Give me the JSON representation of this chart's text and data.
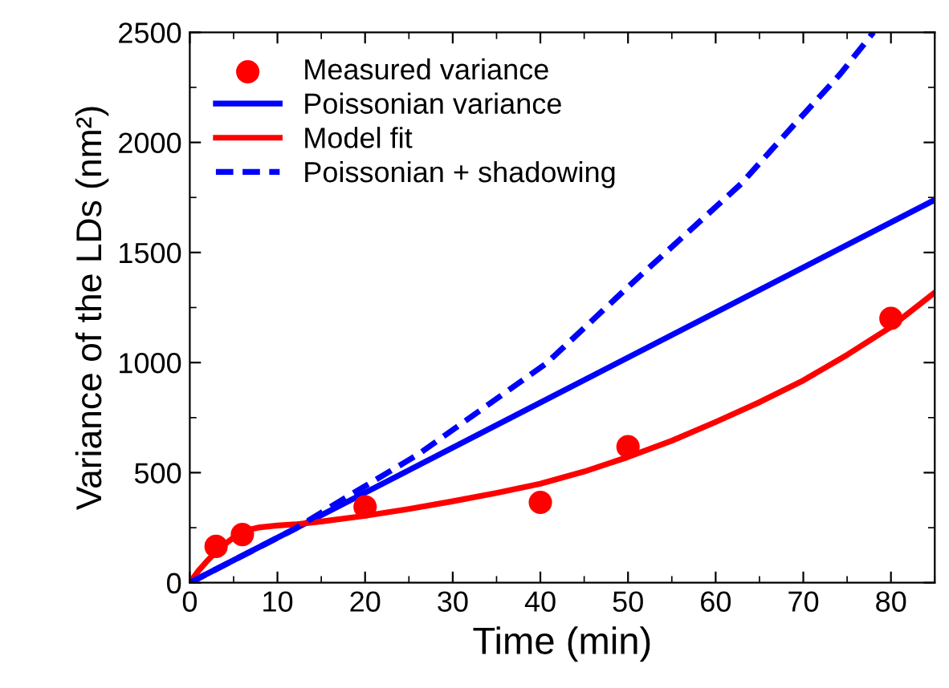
{
  "chart_data": {
    "type": "line",
    "xlabel": "Time (min)",
    "ylabel": "Variance of the LDs (nm²)",
    "xlim": [
      0,
      85
    ],
    "ylim": [
      0,
      2500
    ],
    "xticks": [
      0,
      10,
      20,
      30,
      40,
      50,
      60,
      70,
      80
    ],
    "yticks": [
      0,
      500,
      1000,
      1500,
      2000,
      2500
    ],
    "grid": false,
    "legend": "top left",
    "series": [
      {
        "name": "Measured variance",
        "type": "scatter",
        "color": "#ff0000",
        "marker": "circle",
        "x": [
          3,
          6,
          20,
          40,
          50,
          80
        ],
        "values": [
          165,
          219,
          345,
          365,
          618,
          1201
        ]
      },
      {
        "name": "Poissonian variance",
        "color": "#0000ff",
        "line_style": "solid",
        "x": [
          0,
          85
        ],
        "values": [
          0,
          1739
        ]
      },
      {
        "name": "Model fit",
        "color": "#ff0000",
        "line_style": "solid",
        "x": [
          0,
          1,
          2,
          3,
          4,
          5,
          6,
          7,
          8,
          10,
          12,
          15,
          20,
          25,
          30,
          35,
          40,
          45,
          50,
          55,
          60,
          65,
          70,
          75,
          80,
          85
        ],
        "values": [
          0,
          55,
          100,
          140,
          175,
          205,
          228,
          243,
          252,
          260,
          265,
          278,
          304,
          335,
          370,
          408,
          450,
          505,
          571,
          645,
          730,
          820,
          919,
          1035,
          1162,
          1318
        ]
      },
      {
        "name": "Poissonian + shadowing",
        "color": "#0000ff",
        "line_style": "dashed",
        "x": [
          0,
          12,
          16.9,
          26.1,
          40.7,
          50.5,
          62.9,
          68.1,
          74.2,
          78
        ],
        "values": [
          0,
          245,
          365,
          584,
          997,
          1362,
          1812,
          2043,
          2310,
          2500
        ]
      }
    ]
  }
}
